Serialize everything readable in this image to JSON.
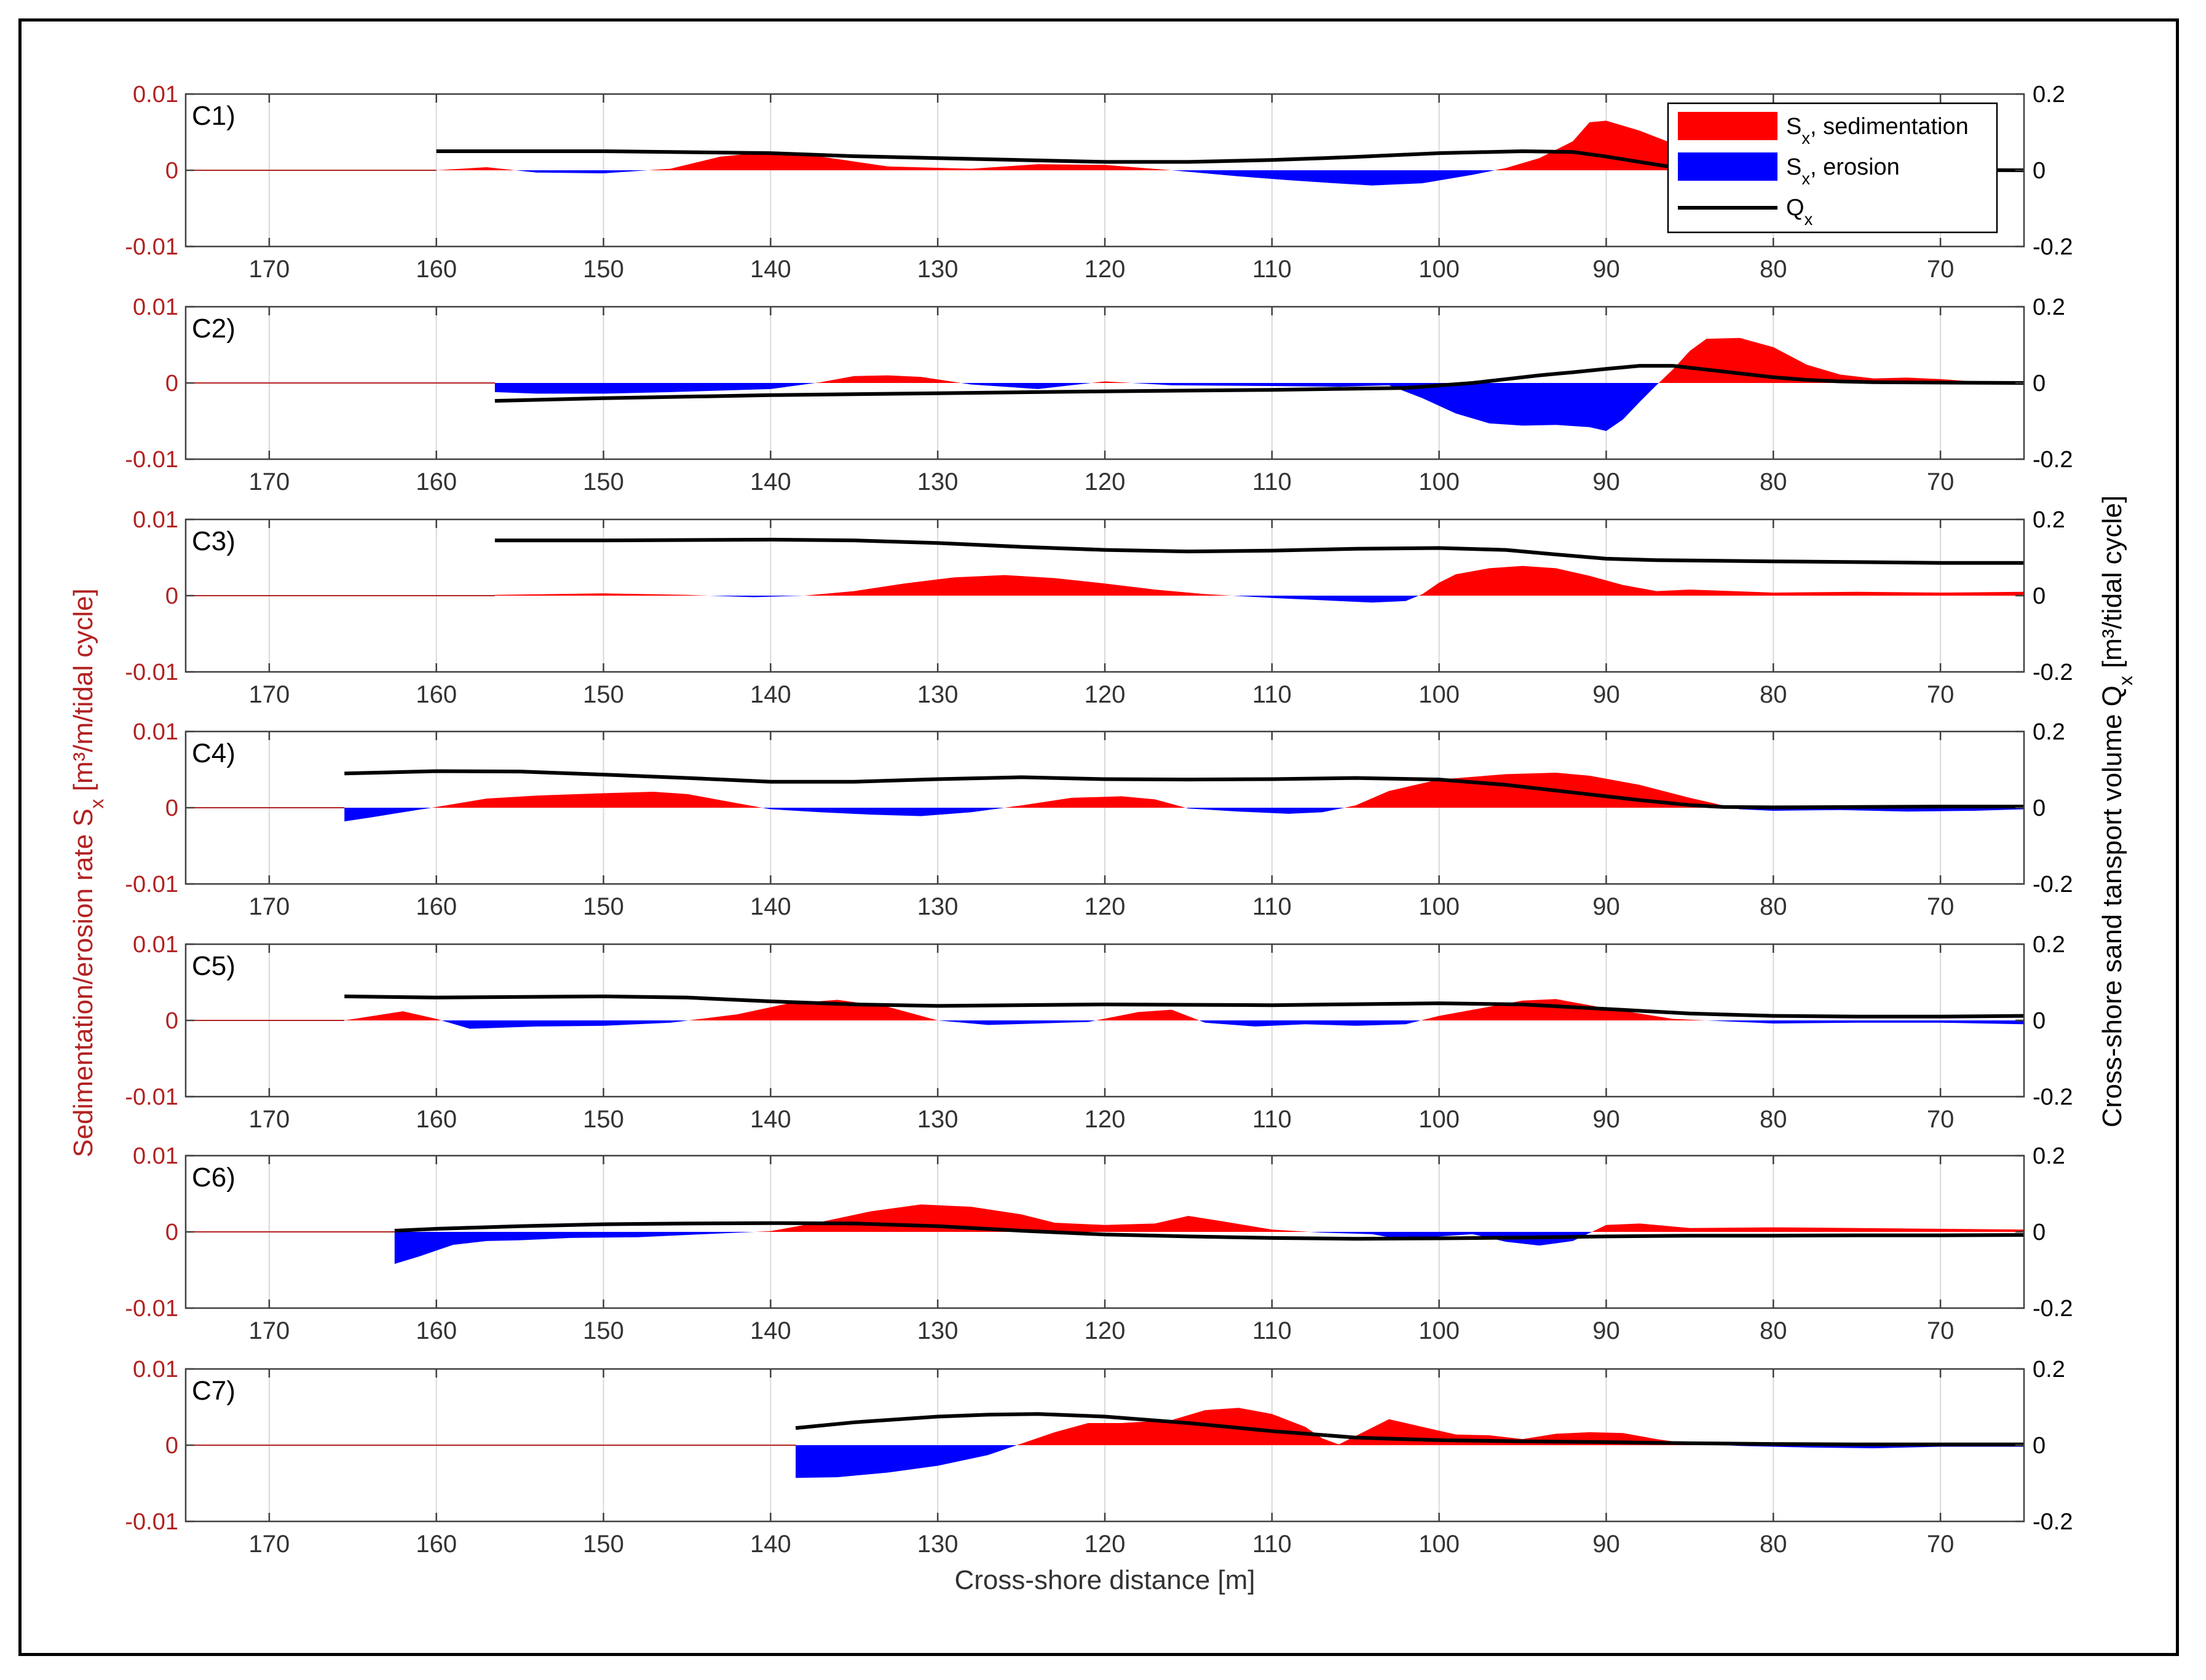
{
  "figure": {
    "xlabel": "Cross-shore distance [m]",
    "ylabel_left": "Sedimentation/erosion rate S",
    "ylabel_left_sub": "x",
    "ylabel_left_units": " [m³/m/tidal cycle]",
    "ylabel_right": "Cross-shore sand tansport volume Q",
    "ylabel_right_sub": "x",
    "ylabel_right_units": " [m³/tidal cycle]",
    "colors": {
      "sedimentation": "#ff0000",
      "erosion": "#0000ff",
      "qx": "#000000",
      "left_axis": "#b22222",
      "zero_line": "#b22222"
    }
  },
  "chart_data": {
    "type": "area",
    "x_axis": {
      "reversed": true,
      "xlim": [
        175,
        65
      ],
      "ticks": [
        170,
        160,
        150,
        140,
        130,
        120,
        110,
        100,
        90,
        80,
        70
      ]
    },
    "y_left": {
      "ylim": [
        -0.01,
        0.01
      ],
      "ticks": [
        -0.01,
        0,
        0.01
      ],
      "tick_labels": [
        "-0.01",
        "0",
        "0.01"
      ]
    },
    "y_right": {
      "ylim": [
        -0.2,
        0.2
      ],
      "ticks": [
        -0.2,
        0,
        0.2
      ],
      "tick_labels": [
        "-0.2",
        "0",
        "0.2"
      ]
    },
    "grid": "vertical",
    "legend": {
      "placement": "top-right of first panel",
      "entries": [
        {
          "label": "S",
          "sub": "x",
          "suffix": ", sedimentation",
          "kind": "patch",
          "color": "#ff0000"
        },
        {
          "label": "S",
          "sub": "x",
          "suffix": ", erosion",
          "kind": "patch",
          "color": "#0000ff"
        },
        {
          "label": "Q",
          "sub": "x",
          "suffix": "",
          "kind": "line",
          "color": "#000000"
        }
      ]
    },
    "panels": [
      {
        "label": "C1)",
        "x_start": 160,
        "sx": {
          "x": [
            160,
            157,
            154,
            150,
            146,
            143,
            140,
            137,
            133,
            128,
            124,
            120,
            116,
            112,
            109,
            107,
            104,
            101,
            98,
            96,
            94,
            92,
            91,
            90,
            88,
            86,
            84,
            82,
            78,
            74,
            70,
            66,
            65
          ],
          "y": [
            0,
            0.0004,
            -0.0003,
            -0.0004,
            0.0002,
            0.0018,
            0.0024,
            0.0018,
            0.0005,
            0.0002,
            0.0008,
            0.0007,
            0,
            -0.0008,
            -0.0013,
            -0.0016,
            -0.002,
            -0.0017,
            -0.0006,
            0.0003,
            0.0016,
            0.0038,
            0.0063,
            0.0065,
            0.0052,
            0.0035,
            0.0018,
            0.0009,
            0.0004,
            0.0004,
            0.0003,
            0.0002,
            0.0001
          ]
        },
        "qx": {
          "x": [
            160,
            150,
            140,
            135,
            130,
            120,
            115,
            110,
            105,
            100,
            95,
            92,
            90,
            88,
            86,
            85,
            80,
            75,
            70,
            65
          ],
          "y": [
            0.05,
            0.05,
            0.045,
            0.037,
            0.032,
            0.022,
            0.022,
            0.027,
            0.035,
            0.045,
            0.05,
            0.048,
            0.036,
            0.022,
            0.008,
            0.003,
            0.002,
            0.002,
            0.001,
            0
          ]
        }
      },
      {
        "label": "C2)",
        "x_start": 156.5,
        "sx": {
          "x": [
            156.5,
            154,
            150,
            146,
            140,
            137,
            135,
            133,
            131,
            128,
            124,
            120,
            116,
            110,
            106,
            103,
            101,
            99,
            97,
            95,
            93,
            91,
            90,
            89,
            88,
            87,
            86,
            85,
            84,
            82,
            80,
            78,
            76,
            74,
            72,
            70,
            68,
            65
          ],
          "y": [
            -0.0012,
            -0.0014,
            -0.0014,
            -0.0012,
            -0.0008,
            0.0001,
            0.0009,
            0.001,
            0.0008,
            -0.0002,
            -0.0008,
            0.0002,
            -0.0003,
            -0.0004,
            -0.0005,
            -0.0003,
            -0.002,
            -0.004,
            -0.0053,
            -0.0056,
            -0.0055,
            -0.0058,
            -0.0063,
            -0.0048,
            -0.0025,
            -0.0003,
            0.0018,
            0.0042,
            0.0058,
            0.0059,
            0.0047,
            0.0024,
            0.0011,
            0.0006,
            0.0007,
            0.0005,
            0.0002,
            -0.0002
          ]
        },
        "qx": {
          "x": [
            156.5,
            150,
            140,
            130,
            120,
            110,
            102,
            98,
            96,
            94,
            92,
            90,
            88,
            86,
            84,
            82,
            80,
            78,
            76,
            74,
            70,
            65
          ],
          "y": [
            -0.047,
            -0.04,
            -0.032,
            -0.027,
            -0.022,
            -0.018,
            -0.013,
            0,
            0.01,
            0.02,
            0.028,
            0.037,
            0.045,
            0.045,
            0.035,
            0.025,
            0.015,
            0.008,
            0.004,
            0.002,
            0.001,
            0
          ]
        }
      },
      {
        "label": "C3)",
        "x_start": 156.5,
        "sx": {
          "x": [
            156.5,
            150,
            145,
            141,
            138,
            135,
            132,
            129,
            126,
            123,
            120,
            117,
            114,
            110,
            106,
            104,
            102,
            101,
            100,
            99,
            97,
            95,
            93,
            91,
            89,
            87,
            85,
            80,
            75,
            70,
            65
          ],
          "y": [
            0.0001,
            0.0003,
            0.0001,
            -0.0002,
            0,
            0.0006,
            0.0016,
            0.0024,
            0.0027,
            0.0023,
            0.0016,
            0.0008,
            0.0002,
            -0.0003,
            -0.0007,
            -0.0009,
            -0.0007,
            0.0002,
            0.0017,
            0.0028,
            0.0036,
            0.0039,
            0.0036,
            0.0026,
            0.0014,
            0.0006,
            0.0008,
            0.0004,
            0.0005,
            0.0004,
            0.0005
          ]
        },
        "qx": {
          "x": [
            156.5,
            150,
            140,
            135,
            130,
            125,
            120,
            115,
            110,
            105,
            100,
            96,
            93,
            90,
            87,
            80,
            75,
            70,
            65
          ],
          "y": [
            0.145,
            0.145,
            0.147,
            0.145,
            0.138,
            0.128,
            0.12,
            0.116,
            0.118,
            0.123,
            0.125,
            0.12,
            0.108,
            0.097,
            0.093,
            0.09,
            0.088,
            0.086,
            0.086
          ]
        }
      },
      {
        "label": "C4)",
        "x_start": 165.5,
        "sx": {
          "x": [
            165.5,
            164,
            162,
            160,
            157,
            154,
            150,
            147,
            145,
            142,
            140,
            137,
            134,
            131,
            128,
            125,
            122,
            119,
            117,
            115,
            112,
            109,
            107,
            105,
            103,
            100,
            96,
            93,
            91,
            88,
            85,
            83,
            82,
            80,
            76,
            72,
            68,
            65
          ],
          "y": [
            -0.0018,
            -0.0013,
            -0.0006,
            0.0001,
            0.0012,
            0.0016,
            0.0019,
            0.0021,
            0.0018,
            0.0006,
            -0.0002,
            -0.0006,
            -0.0009,
            -0.0011,
            -0.0006,
            0.0003,
            0.0013,
            0.0015,
            0.0011,
            -0.0001,
            -0.0005,
            -0.0008,
            -0.0006,
            0.0003,
            0.0022,
            0.0037,
            0.0044,
            0.0046,
            0.0042,
            0.003,
            0.0013,
            0.0003,
            -0.0002,
            -0.0004,
            -0.0003,
            -0.0005,
            -0.0004,
            -0.0002
          ]
        },
        "qx": {
          "x": [
            165.5,
            160,
            155,
            150,
            145,
            140,
            135,
            130,
            125,
            120,
            115,
            110,
            105,
            100,
            96,
            92,
            88,
            85,
            83,
            80,
            75,
            70,
            65
          ],
          "y": [
            0.09,
            0.096,
            0.095,
            0.087,
            0.078,
            0.068,
            0.068,
            0.075,
            0.08,
            0.075,
            0.074,
            0.075,
            0.078,
            0.074,
            0.06,
            0.04,
            0.02,
            0.007,
            0.002,
            0.001,
            0.002,
            0.003,
            0.003
          ]
        }
      },
      {
        "label": "C5)",
        "x_start": 165.5,
        "sx": {
          "x": [
            165.5,
            162,
            160,
            158,
            154,
            150,
            146,
            142,
            139,
            136,
            133,
            130,
            127,
            124,
            121,
            118,
            116,
            114,
            111,
            108,
            105,
            102,
            100,
            97,
            95,
            93,
            90,
            86,
            80,
            75,
            70,
            65
          ],
          "y": [
            0,
            0.0012,
            0.0002,
            -0.0011,
            -0.0008,
            -0.0007,
            -0.0003,
            0.0008,
            0.0022,
            0.0027,
            0.0018,
            0,
            -0.0006,
            -0.0004,
            -0.0002,
            0.0011,
            0.0014,
            -0.0003,
            -0.0008,
            -0.0005,
            -0.0007,
            -0.0005,
            0.0006,
            0.0018,
            0.0026,
            0.0028,
            0.0016,
            0.0002,
            -0.0004,
            -0.0003,
            -0.0003,
            -0.0005
          ]
        },
        "qx": {
          "x": [
            165.5,
            160,
            150,
            145,
            140,
            135,
            130,
            120,
            110,
            100,
            95,
            90,
            85,
            80,
            75,
            70,
            65
          ],
          "y": [
            0.063,
            0.06,
            0.063,
            0.06,
            0.05,
            0.042,
            0.038,
            0.042,
            0.04,
            0.045,
            0.042,
            0.03,
            0.018,
            0.012,
            0.01,
            0.01,
            0.012
          ]
        }
      },
      {
        "label": "C6)",
        "x_start": 162.5,
        "sx": {
          "x": [
            162.5,
            161,
            159,
            157,
            155,
            152,
            148,
            145,
            140,
            137,
            134,
            131,
            128,
            125,
            123,
            120,
            117,
            115,
            113,
            110,
            107,
            104,
            102,
            100,
            98,
            96,
            94,
            92,
            90,
            88,
            85,
            80,
            75,
            70,
            65
          ],
          "y": [
            -0.0042,
            -0.0032,
            -0.0017,
            -0.0012,
            -0.0011,
            -0.0008,
            -0.0007,
            -0.0004,
            0.0001,
            0.0013,
            0.0027,
            0.0036,
            0.0033,
            0.0023,
            0.0012,
            0.0009,
            0.0011,
            0.0021,
            0.0014,
            0.0003,
            -0.0001,
            -0.0003,
            -0.0011,
            -0.0006,
            -0.0003,
            -0.0013,
            -0.0018,
            -0.0012,
            0.0009,
            0.0011,
            0.0005,
            0.0006,
            0.0005,
            0.0004,
            0.0003
          ]
        },
        "qx": {
          "x": [
            162.5,
            160,
            155,
            150,
            145,
            140,
            135,
            130,
            125,
            120,
            115,
            110,
            105,
            100,
            95,
            90,
            85,
            80,
            75,
            70,
            65
          ],
          "y": [
            0.003,
            0.008,
            0.015,
            0.02,
            0.022,
            0.023,
            0.022,
            0.015,
            0.003,
            -0.007,
            -0.012,
            -0.016,
            -0.018,
            -0.017,
            -0.015,
            -0.012,
            -0.01,
            -0.01,
            -0.009,
            -0.009,
            -0.008
          ]
        }
      },
      {
        "label": "C7)",
        "x_start": 138.5,
        "sx": {
          "x": [
            138.5,
            136,
            133,
            130,
            127,
            125,
            123,
            121,
            119,
            116,
            114,
            112,
            110,
            108,
            107,
            106,
            105,
            103,
            101,
            99,
            97,
            95,
            93,
            91,
            89,
            87,
            85,
            82,
            78,
            74,
            70,
            65
          ],
          "y": [
            -0.0043,
            -0.0042,
            -0.0036,
            -0.0027,
            -0.0013,
            0.0002,
            0.0017,
            0.0029,
            0.0029,
            0.0033,
            0.0046,
            0.0049,
            0.0041,
            0.0024,
            0.0009,
            0.0001,
            0.0012,
            0.0034,
            0.0024,
            0.0014,
            0.0013,
            0.0008,
            0.0015,
            0.0017,
            0.0016,
            0.0008,
            0.0002,
            -0.0001,
            -0.0003,
            -0.0004,
            -0.0002,
            -0.0002
          ]
        },
        "qx": {
          "x": [
            138.5,
            135,
            130,
            127,
            124,
            120,
            115,
            110,
            105,
            100,
            95,
            90,
            85,
            80,
            75,
            70,
            65
          ],
          "y": [
            0.045,
            0.06,
            0.075,
            0.08,
            0.082,
            0.075,
            0.058,
            0.037,
            0.02,
            0.013,
            0.01,
            0.008,
            0.005,
            0.003,
            0.002,
            0.002,
            0.002
          ]
        }
      }
    ]
  }
}
